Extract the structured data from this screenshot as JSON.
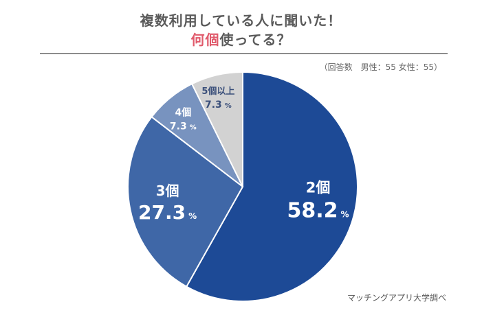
{
  "header": {
    "title_line1": "複数利用している人に聞いた！",
    "title_line2_highlight": "何個",
    "title_line2_rest": "使ってる？"
  },
  "note": "（回答数　男性：55 女性：55）",
  "credit": "マッチングアプリ大学調べ",
  "colors": {
    "title_highlight": "#e05a6b",
    "slice_2": "#1d4a96",
    "slice_3": "#3f67a7",
    "slice_4": "#7893bf",
    "slice_5plus": "#d2d2d2"
  },
  "chart_data": {
    "type": "pie",
    "title": "複数利用している人に聞いた！何個使ってる？",
    "start": "12 o'clock",
    "direction": "clockwise",
    "slices": [
      {
        "label": "2個",
        "value": 58.2,
        "unit": "%",
        "color": "#1d4a96"
      },
      {
        "label": "3個",
        "value": 27.3,
        "unit": "%",
        "color": "#3f67a7"
      },
      {
        "label": "4個",
        "value": 7.3,
        "unit": "%",
        "color": "#7893bf"
      },
      {
        "label": "5個以上",
        "value": 7.3,
        "unit": "%",
        "color": "#d2d2d2"
      }
    ]
  }
}
